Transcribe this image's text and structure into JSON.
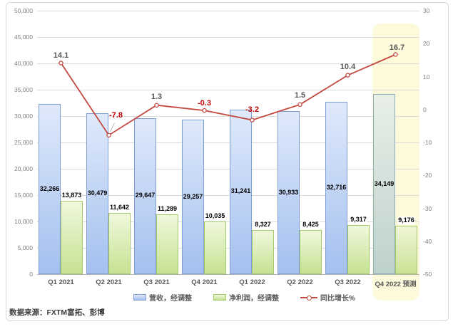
{
  "source": {
    "text": "数据来源：FXTM富拓、彭博"
  },
  "chart_data": {
    "type": "combo-bar-line",
    "categories": [
      "Q1 2021",
      "Q2 2021",
      "Q3 2021",
      "Q4 2021",
      "Q1 2022",
      "Q2 2022",
      "Q3 2022",
      "Q4 2022 预测"
    ],
    "series": [
      {
        "name": "营收，经调整",
        "type": "bar",
        "axis": "left",
        "values": [
          32266,
          30479,
          29647,
          29257,
          31241,
          30933,
          32716,
          34149
        ],
        "labels": [
          "32,266",
          "30,479",
          "29,647",
          "29,257",
          "31,241",
          "30,933",
          "32,716",
          "34,149"
        ],
        "color_top": "#dfe9fb",
        "color_bottom": "#a4c0ef",
        "border": "#7f9fd4",
        "forecast_color_top": "#e9efe9",
        "forecast_color_bottom": "#bdd2cb",
        "forecast_border": "#8fadb6"
      },
      {
        "name": "净利润，经调整",
        "type": "bar",
        "axis": "left",
        "values": [
          13873,
          11642,
          11289,
          10035,
          8327,
          8425,
          9317,
          9176
        ],
        "labels": [
          "13,873",
          "11,642",
          "11,289",
          "10,035",
          "8,327",
          "8,425",
          "9,317",
          "9,176"
        ],
        "color_top": "#f0f8dd",
        "color_bottom": "#c6e292",
        "border": "#a3c969",
        "forecast_color_top": "#f0f6d6",
        "forecast_color_bottom": "#cbe295",
        "forecast_border": "#a3c969"
      },
      {
        "name": "同比增长%",
        "type": "line",
        "axis": "right",
        "values": [
          14.1,
          -7.8,
          1.3,
          -0.3,
          -3.2,
          1.5,
          10.4,
          16.7
        ],
        "labels": [
          "14.1",
          "-7.8",
          "1.3",
          "-0.3",
          "-3.2",
          "1.5",
          "10.4",
          "16.7"
        ],
        "color": "#c2493f",
        "label_color_positive": "#595959",
        "label_color_negative": "#c00000"
      }
    ],
    "left_axis": {
      "min": 0,
      "max": 50000,
      "step": 5000,
      "ticks": [
        "50,000",
        "45,000",
        "40,000",
        "35,000",
        "30,000",
        "25,000",
        "20,000",
        "15,000",
        "10,000",
        "5,000",
        "0"
      ]
    },
    "right_axis": {
      "min": -50,
      "max": 30,
      "step": 10,
      "ticks": [
        "30",
        "20",
        "10",
        "0",
        "-10",
        "-20",
        "-30",
        "-40",
        "-50"
      ]
    },
    "highlight": {
      "category": "Q4 2022 预测",
      "color": "#fcfadb"
    },
    "grid": true,
    "legend_position": "bottom"
  }
}
